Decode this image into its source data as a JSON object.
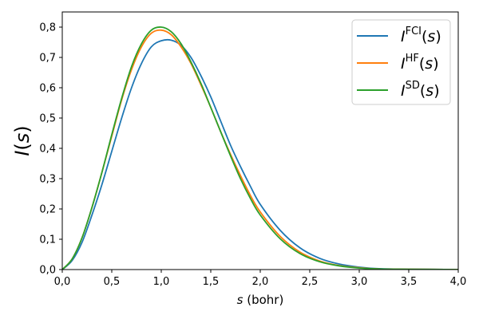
{
  "chart_data": {
    "type": "line",
    "ylabel": "I(s)",
    "xlabel_var": "s",
    "xlabel_unit": " (bohr)",
    "xlim": [
      0.0,
      4.0
    ],
    "ylim": [
      0.0,
      0.85
    ],
    "xticks": [
      0.0,
      0.5,
      1.0,
      1.5,
      2.0,
      2.5,
      3.0,
      3.5,
      4.0
    ],
    "xtick_labels": [
      "0,0",
      "0,5",
      "1,0",
      "1,5",
      "2,0",
      "2,5",
      "3,0",
      "3,5",
      "4,0"
    ],
    "yticks": [
      0.0,
      0.1,
      0.2,
      0.3,
      0.4,
      0.5,
      0.6,
      0.7,
      0.8
    ],
    "ytick_labels": [
      "0,0",
      "0,1",
      "0,2",
      "0,3",
      "0,4",
      "0,5",
      "0,6",
      "0,7",
      "0,8"
    ],
    "legend_position": "top-right",
    "series": [
      {
        "name": "FCI",
        "legend_base": "I",
        "legend_sup": "FCI",
        "legend_arg": "(s)",
        "color": "#1f77b4",
        "x": [
          0.0,
          0.1,
          0.2,
          0.3,
          0.4,
          0.5,
          0.6,
          0.7,
          0.8,
          0.9,
          1.0,
          1.1,
          1.2,
          1.3,
          1.4,
          1.5,
          1.6,
          1.7,
          1.8,
          1.9,
          2.0,
          2.2,
          2.4,
          2.6,
          2.8,
          3.0,
          3.2,
          3.5,
          4.0
        ],
        "y": [
          0.0,
          0.03,
          0.09,
          0.18,
          0.28,
          0.39,
          0.5,
          0.6,
          0.68,
          0.735,
          0.755,
          0.757,
          0.74,
          0.7,
          0.64,
          0.57,
          0.49,
          0.41,
          0.34,
          0.275,
          0.215,
          0.13,
          0.072,
          0.037,
          0.018,
          0.008,
          0.003,
          0.001,
          0.0
        ]
      },
      {
        "name": "HF",
        "legend_base": "I",
        "legend_sup": "HF",
        "legend_arg": "(s)",
        "color": "#ff7f0e",
        "x": [
          0.0,
          0.1,
          0.2,
          0.3,
          0.4,
          0.5,
          0.6,
          0.7,
          0.8,
          0.9,
          1.0,
          1.1,
          1.2,
          1.3,
          1.4,
          1.5,
          1.6,
          1.7,
          1.8,
          1.9,
          2.0,
          2.2,
          2.4,
          2.6,
          2.8,
          3.0,
          3.2,
          3.5,
          4.0
        ],
        "y": [
          0.0,
          0.035,
          0.105,
          0.205,
          0.32,
          0.44,
          0.56,
          0.66,
          0.735,
          0.78,
          0.79,
          0.775,
          0.735,
          0.68,
          0.61,
          0.535,
          0.455,
          0.38,
          0.31,
          0.245,
          0.19,
          0.11,
          0.058,
          0.028,
          0.013,
          0.006,
          0.002,
          0.001,
          0.0
        ]
      },
      {
        "name": "SD",
        "legend_base": "I",
        "legend_sup": "SD",
        "legend_arg": "(s)",
        "color": "#2ca02c",
        "x": [
          0.0,
          0.1,
          0.2,
          0.3,
          0.4,
          0.5,
          0.6,
          0.7,
          0.8,
          0.9,
          1.0,
          1.1,
          1.2,
          1.3,
          1.4,
          1.5,
          1.6,
          1.7,
          1.8,
          1.9,
          2.0,
          2.2,
          2.4,
          2.6,
          2.8,
          3.0,
          3.2,
          3.5,
          4.0
        ],
        "y": [
          0.0,
          0.035,
          0.105,
          0.205,
          0.32,
          0.445,
          0.565,
          0.67,
          0.745,
          0.79,
          0.8,
          0.785,
          0.745,
          0.685,
          0.615,
          0.535,
          0.455,
          0.375,
          0.3,
          0.235,
          0.18,
          0.102,
          0.053,
          0.026,
          0.012,
          0.005,
          0.002,
          0.001,
          0.0
        ]
      }
    ]
  }
}
